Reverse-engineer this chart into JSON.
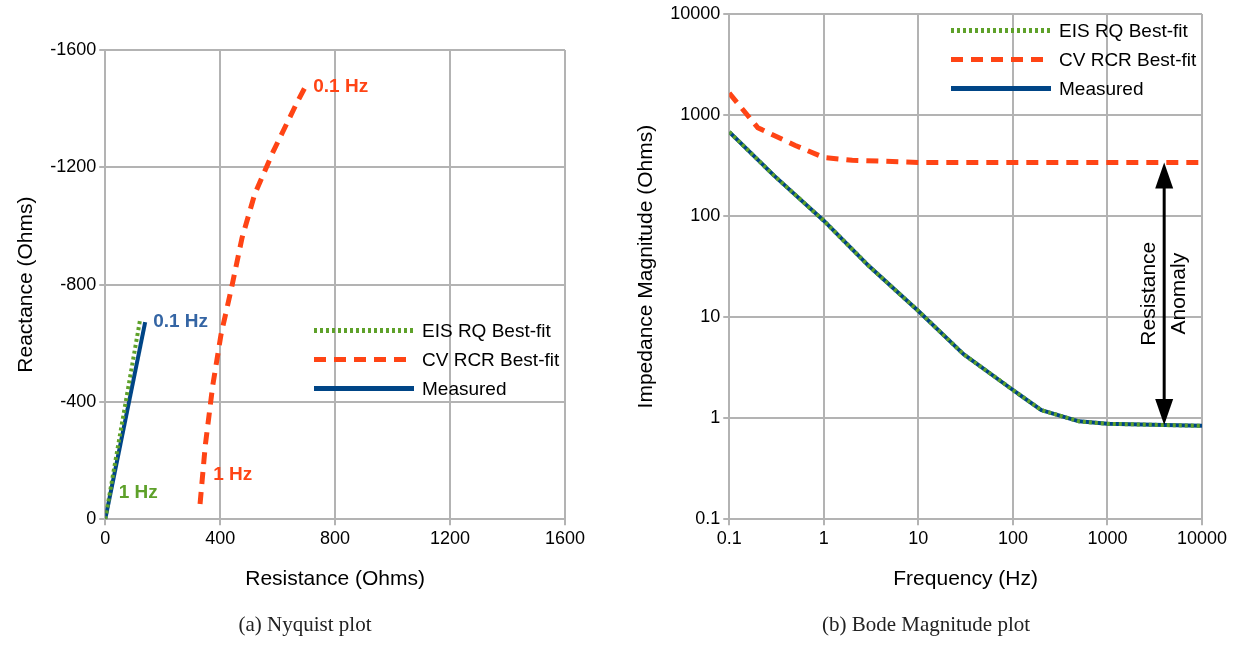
{
  "chart_data": [
    {
      "type": "line",
      "xlabel": "Resistance (Ohms)",
      "ylabel": "Reactance (Ohms)",
      "xlim": [
        0,
        1600
      ],
      "xticks": [
        0,
        400,
        800,
        1200,
        1600
      ],
      "ylim": [
        0,
        -1600
      ],
      "yticks": [
        0,
        -400,
        -800,
        -1200,
        -1600
      ],
      "grid": true,
      "legend": "right",
      "annotations": [
        {
          "text": "0.1 Hz",
          "x": 139,
          "y": -672
        },
        {
          "text": "1 Hz",
          "x": 19,
          "y": -90
        },
        {
          "text": "1 Hz",
          "x": 348,
          "y": -150
        },
        {
          "text": "0.1 Hz",
          "x": 696,
          "y": -1474
        },
        "(a) Nyquist plot"
      ],
      "series": [
        {
          "name": "EIS RQ Best-fit",
          "color": "#5ea12a",
          "line_style": "dotted",
          "x": [
            0,
            121
          ],
          "values": [
            0,
            -679
          ]
        },
        {
          "name": "CV RCR Best-fit",
          "color": "#ff4415",
          "line_style": "dashed",
          "x": [
            330,
            348,
            374,
            403,
            440,
            476,
            520,
            586,
            667,
            696
          ],
          "values": [
            -52,
            -250,
            -455,
            -630,
            -791,
            -959,
            -1108,
            -1257,
            -1420,
            -1474
          ]
        },
        {
          "name": "Measured",
          "color": "#004586",
          "line_style": "solid",
          "x": [
            0,
            139
          ],
          "values": [
            0,
            -672
          ]
        }
      ]
    },
    {
      "type": "line",
      "xlabel": "Frequency (Hz)",
      "ylabel": "Impedance Magnitude (Ohms)",
      "log": "xy",
      "xlim": [
        0.1,
        10000
      ],
      "xticks": [
        0.1,
        1,
        10,
        100,
        1000,
        10000
      ],
      "ylim": [
        0.1,
        10000
      ],
      "yticks": [
        0.1,
        1,
        10,
        100,
        1000,
        10000
      ],
      "grid": true,
      "legend": "top right",
      "annotations": [
        "Resistance Anomaly",
        "(b) Bode Magnitude plot"
      ],
      "series": [
        {
          "name": "EIS RQ Best-fit",
          "color": "#5ea12a",
          "line_style": "dotted",
          "x": [
            0.1,
            0.3,
            1,
            3,
            10,
            30,
            100,
            200,
            500,
            1000,
            3000,
            10000
          ],
          "values": [
            680,
            250,
            90,
            32,
            11.5,
            4.3,
            1.9,
            1.2,
            0.93,
            0.88,
            0.86,
            0.84
          ]
        },
        {
          "name": "CV RCR Best-fit",
          "color": "#ff4415",
          "line_style": "dashed",
          "x": [
            0.1,
            0.2,
            0.5,
            1,
            2,
            10,
            100,
            1000,
            10000
          ],
          "values": [
            1650,
            750,
            500,
            380,
            357,
            340,
            340,
            340,
            340
          ]
        },
        {
          "name": "Measured",
          "color": "#004586",
          "line_style": "solid",
          "x": [
            0.1,
            0.3,
            1,
            3,
            10,
            30,
            100,
            200,
            500,
            1000,
            3000,
            10000
          ],
          "values": [
            680,
            250,
            90,
            32,
            11.5,
            4.3,
            1.9,
            1.2,
            0.93,
            0.88,
            0.86,
            0.84
          ]
        }
      ]
    }
  ]
}
